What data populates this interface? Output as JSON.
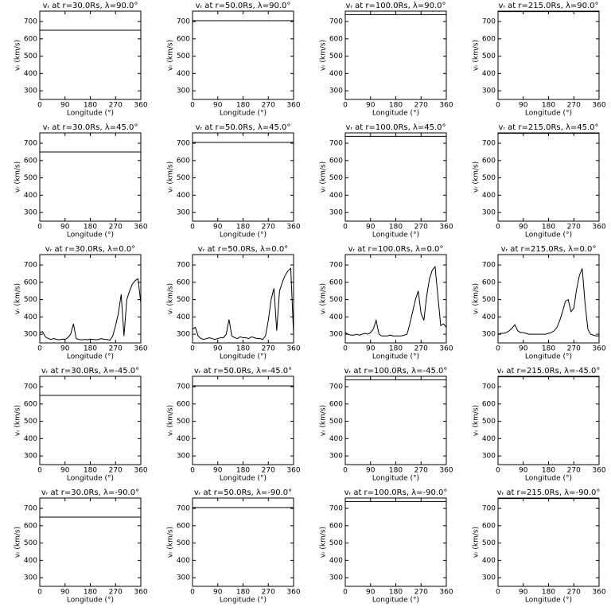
{
  "chart_data": [
    {
      "type": "line",
      "title": "vᵣ at r=30.0Rs, λ=90.0°",
      "xlabel": "Longitude (°)",
      "ylabel": "vᵣ (km/s)",
      "x": [
        0,
        360
      ],
      "values": [
        650,
        650
      ],
      "color": "#000000",
      "xlim": [
        0,
        360
      ],
      "xticks": [
        0,
        90,
        180,
        270,
        360
      ],
      "ylim": [
        250,
        760
      ],
      "yticks": [
        300,
        400,
        500,
        600,
        700
      ]
    },
    {
      "type": "line",
      "title": "vᵣ at r=50.0Rs, λ=90.0°",
      "xlabel": "Longitude (°)",
      "ylabel": "vᵣ (km/s)",
      "x": [
        0,
        360
      ],
      "values": [
        705,
        705
      ],
      "color": "#000000",
      "xlim": [
        0,
        360
      ],
      "xticks": [
        0,
        90,
        180,
        270,
        360
      ],
      "ylim": [
        250,
        760
      ],
      "yticks": [
        300,
        400,
        500,
        600,
        700
      ]
    },
    {
      "type": "line",
      "title": "vᵣ at r=100.0Rs, λ=90.0°",
      "xlabel": "Longitude (°)",
      "ylabel": "vᵣ (km/s)",
      "x": [
        0,
        360
      ],
      "values": [
        740,
        740
      ],
      "color": "#000000",
      "xlim": [
        0,
        360
      ],
      "xticks": [
        0,
        90,
        180,
        270,
        360
      ],
      "ylim": [
        250,
        760
      ],
      "yticks": [
        300,
        400,
        500,
        600,
        700
      ]
    },
    {
      "type": "line",
      "title": "vᵣ at r=215.0Rs, λ=90.0°",
      "xlabel": "Longitude (°)",
      "ylabel": "vᵣ (km/s)",
      "x": [
        0,
        360
      ],
      "values": [
        757,
        757
      ],
      "color": "#000000",
      "xlim": [
        0,
        360
      ],
      "xticks": [
        0,
        90,
        180,
        270,
        360
      ],
      "ylim": [
        250,
        760
      ],
      "yticks": [
        300,
        400,
        500,
        600,
        700
      ]
    },
    {
      "type": "line",
      "title": "vᵣ at r=30.0Rs, λ=45.0°",
      "xlabel": "Longitude (°)",
      "ylabel": "vᵣ (km/s)",
      "x": [
        0,
        360
      ],
      "values": [
        650,
        650
      ],
      "color": "#000000",
      "xlim": [
        0,
        360
      ],
      "xticks": [
        0,
        90,
        180,
        270,
        360
      ],
      "ylim": [
        250,
        760
      ],
      "yticks": [
        300,
        400,
        500,
        600,
        700
      ]
    },
    {
      "type": "line",
      "title": "vᵣ at r=50.0Rs, λ=45.0°",
      "xlabel": "Longitude (°)",
      "ylabel": "vᵣ (km/s)",
      "x": [
        0,
        360
      ],
      "values": [
        705,
        705
      ],
      "color": "#000000",
      "xlim": [
        0,
        360
      ],
      "xticks": [
        0,
        90,
        180,
        270,
        360
      ],
      "ylim": [
        250,
        760
      ],
      "yticks": [
        300,
        400,
        500,
        600,
        700
      ]
    },
    {
      "type": "line",
      "title": "vᵣ at r=100.0Rs, λ=45.0°",
      "xlabel": "Longitude (°)",
      "ylabel": "vᵣ (km/s)",
      "x": [
        0,
        360
      ],
      "values": [
        740,
        740
      ],
      "color": "#000000",
      "xlim": [
        0,
        360
      ],
      "xticks": [
        0,
        90,
        180,
        270,
        360
      ],
      "ylim": [
        250,
        760
      ],
      "yticks": [
        300,
        400,
        500,
        600,
        700
      ]
    },
    {
      "type": "line",
      "title": "vᵣ at r=215.0Rs, λ=45.0°",
      "xlabel": "Longitude (°)",
      "ylabel": "vᵣ (km/s)",
      "x": [
        0,
        360
      ],
      "values": [
        757,
        757
      ],
      "color": "#000000",
      "xlim": [
        0,
        360
      ],
      "xticks": [
        0,
        90,
        180,
        270,
        360
      ],
      "ylim": [
        250,
        760
      ],
      "yticks": [
        300,
        400,
        500,
        600,
        700
      ]
    },
    {
      "type": "line",
      "title": "vᵣ at r=30.0Rs, λ=0.0°",
      "xlabel": "Longitude (°)",
      "ylabel": "vᵣ (km/s)",
      "x": [
        0,
        10,
        20,
        30,
        40,
        50,
        60,
        70,
        80,
        90,
        100,
        110,
        120,
        130,
        140,
        150,
        160,
        170,
        180,
        190,
        200,
        210,
        220,
        230,
        240,
        250,
        260,
        270,
        280,
        290,
        300,
        310,
        320,
        330,
        340,
        350,
        360
      ],
      "values": [
        310,
        315,
        285,
        275,
        270,
        275,
        270,
        268,
        272,
        270,
        280,
        300,
        360,
        275,
        270,
        268,
        270,
        268,
        272,
        270,
        268,
        270,
        275,
        270,
        270,
        265,
        290,
        350,
        420,
        530,
        290,
        500,
        550,
        590,
        610,
        620,
        480
      ],
      "color": "#000000",
      "xlim": [
        0,
        360
      ],
      "xticks": [
        0,
        90,
        180,
        270,
        360
      ],
      "ylim": [
        250,
        760
      ],
      "yticks": [
        300,
        400,
        500,
        600,
        700
      ]
    },
    {
      "type": "line",
      "title": "vᵣ at r=50.0Rs, λ=0.0°",
      "xlabel": "Longitude (°)",
      "ylabel": "vᵣ (km/s)",
      "x": [
        0,
        10,
        20,
        30,
        40,
        50,
        60,
        70,
        80,
        90,
        100,
        110,
        120,
        130,
        140,
        150,
        160,
        170,
        180,
        190,
        200,
        210,
        220,
        230,
        240,
        250,
        260,
        270,
        280,
        290,
        300,
        310,
        320,
        330,
        340,
        350,
        360
      ],
      "values": [
        330,
        340,
        290,
        275,
        270,
        275,
        280,
        275,
        270,
        275,
        280,
        280,
        300,
        385,
        290,
        280,
        275,
        285,
        280,
        280,
        275,
        285,
        280,
        275,
        275,
        270,
        290,
        380,
        500,
        565,
        320,
        550,
        600,
        640,
        665,
        680,
        300
      ],
      "color": "#000000",
      "xlim": [
        0,
        360
      ],
      "xticks": [
        0,
        90,
        180,
        270,
        360
      ],
      "ylim": [
        250,
        760
      ],
      "yticks": [
        300,
        400,
        500,
        600,
        700
      ]
    },
    {
      "type": "line",
      "title": "vᵣ at r=100.0Rs, λ=0.0°",
      "xlabel": "Longitude (°)",
      "ylabel": "vᵣ (km/s)",
      "x": [
        0,
        10,
        20,
        30,
        40,
        50,
        60,
        70,
        80,
        90,
        100,
        110,
        120,
        130,
        140,
        150,
        160,
        170,
        180,
        190,
        200,
        210,
        220,
        230,
        240,
        250,
        260,
        270,
        280,
        290,
        300,
        310,
        320,
        330,
        340,
        350,
        360
      ],
      "values": [
        310,
        300,
        295,
        295,
        300,
        295,
        300,
        305,
        300,
        310,
        330,
        380,
        300,
        290,
        290,
        290,
        295,
        290,
        290,
        290,
        290,
        295,
        300,
        360,
        430,
        500,
        550,
        420,
        380,
        520,
        620,
        670,
        690,
        520,
        350,
        360,
        340
      ],
      "color": "#000000",
      "xlim": [
        0,
        360
      ],
      "xticks": [
        0,
        90,
        180,
        270,
        360
      ],
      "ylim": [
        250,
        760
      ],
      "yticks": [
        300,
        400,
        500,
        600,
        700
      ]
    },
    {
      "type": "line",
      "title": "vᵣ at r=215.0Rs, λ=0.0°",
      "xlabel": "Longitude (°)",
      "ylabel": "vᵣ (km/s)",
      "x": [
        0,
        10,
        20,
        30,
        40,
        50,
        60,
        70,
        80,
        90,
        100,
        110,
        120,
        130,
        140,
        150,
        160,
        170,
        180,
        190,
        200,
        210,
        220,
        230,
        240,
        250,
        260,
        270,
        280,
        290,
        300,
        310,
        320,
        330,
        340,
        350,
        360
      ],
      "values": [
        300,
        305,
        305,
        310,
        320,
        335,
        355,
        320,
        310,
        310,
        305,
        300,
        300,
        300,
        300,
        300,
        300,
        300,
        305,
        310,
        320,
        340,
        380,
        430,
        490,
        500,
        430,
        450,
        560,
        640,
        680,
        480,
        330,
        300,
        295,
        290,
        290
      ],
      "color": "#000000",
      "xlim": [
        0,
        360
      ],
      "xticks": [
        0,
        90,
        180,
        270,
        360
      ],
      "ylim": [
        250,
        760
      ],
      "yticks": [
        300,
        400,
        500,
        600,
        700
      ]
    },
    {
      "type": "line",
      "title": "vᵣ at r=30.0Rs, λ=-45.0°",
      "xlabel": "Longitude (°)",
      "ylabel": "vᵣ (km/s)",
      "x": [
        0,
        360
      ],
      "values": [
        650,
        650
      ],
      "color": "#000000",
      "xlim": [
        0,
        360
      ],
      "xticks": [
        0,
        90,
        180,
        270,
        360
      ],
      "ylim": [
        250,
        760
      ],
      "yticks": [
        300,
        400,
        500,
        600,
        700
      ]
    },
    {
      "type": "line",
      "title": "vᵣ at r=50.0Rs, λ=-45.0°",
      "xlabel": "Longitude (°)",
      "ylabel": "vᵣ (km/s)",
      "x": [
        0,
        360
      ],
      "values": [
        705,
        705
      ],
      "color": "#000000",
      "xlim": [
        0,
        360
      ],
      "xticks": [
        0,
        90,
        180,
        270,
        360
      ],
      "ylim": [
        250,
        760
      ],
      "yticks": [
        300,
        400,
        500,
        600,
        700
      ]
    },
    {
      "type": "line",
      "title": "vᵣ at r=100.0Rs, λ=-45.0°",
      "xlabel": "Longitude (°)",
      "ylabel": "vᵣ (km/s)",
      "x": [
        0,
        360
      ],
      "values": [
        740,
        740
      ],
      "color": "#000000",
      "xlim": [
        0,
        360
      ],
      "xticks": [
        0,
        90,
        180,
        270,
        360
      ],
      "ylim": [
        250,
        760
      ],
      "yticks": [
        300,
        400,
        500,
        600,
        700
      ]
    },
    {
      "type": "line",
      "title": "vᵣ at r=215.0Rs, λ=-45.0°",
      "xlabel": "Longitude (°)",
      "ylabel": "vᵣ (km/s)",
      "x": [
        0,
        360
      ],
      "values": [
        757,
        757
      ],
      "color": "#000000",
      "xlim": [
        0,
        360
      ],
      "xticks": [
        0,
        90,
        180,
        270,
        360
      ],
      "ylim": [
        250,
        760
      ],
      "yticks": [
        300,
        400,
        500,
        600,
        700
      ]
    },
    {
      "type": "line",
      "title": "vᵣ at r=30.0Rs, λ=-90.0°",
      "xlabel": "Longitude (°)",
      "ylabel": "vᵣ (km/s)",
      "x": [
        0,
        360
      ],
      "values": [
        650,
        650
      ],
      "color": "#000000",
      "xlim": [
        0,
        360
      ],
      "xticks": [
        0,
        90,
        180,
        270,
        360
      ],
      "ylim": [
        250,
        760
      ],
      "yticks": [
        300,
        400,
        500,
        600,
        700
      ]
    },
    {
      "type": "line",
      "title": "vᵣ at r=50.0Rs, λ=-90.0°",
      "xlabel": "Longitude (°)",
      "ylabel": "vᵣ (km/s)",
      "x": [
        0,
        360
      ],
      "values": [
        705,
        705
      ],
      "color": "#000000",
      "xlim": [
        0,
        360
      ],
      "xticks": [
        0,
        90,
        180,
        270,
        360
      ],
      "ylim": [
        250,
        760
      ],
      "yticks": [
        300,
        400,
        500,
        600,
        700
      ]
    },
    {
      "type": "line",
      "title": "vᵣ at r=100.0Rs, λ=-90.0°",
      "xlabel": "Longitude (°)",
      "ylabel": "vᵣ (km/s)",
      "x": [
        0,
        360
      ],
      "values": [
        740,
        740
      ],
      "color": "#000000",
      "xlim": [
        0,
        360
      ],
      "xticks": [
        0,
        90,
        180,
        270,
        360
      ],
      "ylim": [
        250,
        760
      ],
      "yticks": [
        300,
        400,
        500,
        600,
        700
      ]
    },
    {
      "type": "line",
      "title": "vᵣ at r=215.0Rs, λ=-90.0°",
      "xlabel": "Longitude (°)",
      "ylabel": "vᵣ (km/s)",
      "x": [
        0,
        360
      ],
      "values": [
        757,
        757
      ],
      "color": "#000000",
      "xlim": [
        0,
        360
      ],
      "xticks": [
        0,
        90,
        180,
        270,
        360
      ],
      "ylim": [
        250,
        760
      ],
      "yticks": [
        300,
        400,
        500,
        600,
        700
      ]
    }
  ]
}
